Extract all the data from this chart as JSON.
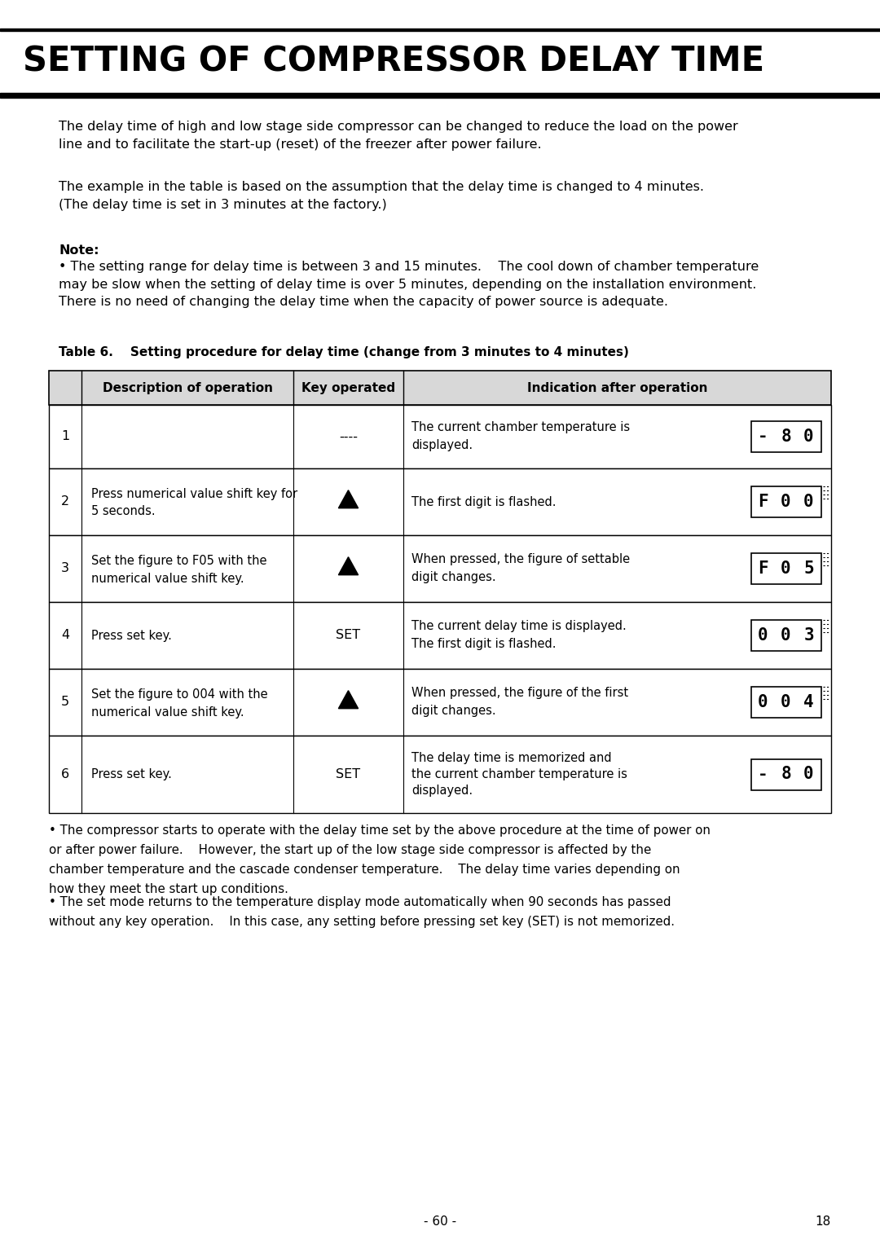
{
  "title": "SETTING OF COMPRESSOR DELAY TIME",
  "para1": "The delay time of high and low stage side compressor can be changed to reduce the load on the power\nline and to facilitate the start-up (reset) of the freezer after power failure.",
  "para2": "The example in the table is based on the assumption that the delay time is changed to 4 minutes.\n(The delay time is set in 3 minutes at the factory.)",
  "note_label": "Note:",
  "note_text": "• The setting range for delay time is between 3 and 15 minutes.    The cool down of chamber temperature\nmay be slow when the setting of delay time is over 5 minutes, depending on the installation environment.\nThere is no need of changing the delay time when the capacity of power source is adequate.",
  "table_title": "Table 6.    Setting procedure for delay time (change from 3 minutes to 4 minutes)",
  "col_headers": [
    "",
    "Description of operation",
    "Key operated",
    "Indication after operation"
  ],
  "rows": [
    {
      "num": "1",
      "desc": "",
      "key": "----",
      "key_is_arrow": false,
      "indication_text": "The current chamber temperature is\ndisplayed.",
      "display_text": "-80",
      "display_dashed": false
    },
    {
      "num": "2",
      "desc": "Press numerical value shift key for\n5 seconds.",
      "key": "arrow",
      "key_is_arrow": true,
      "indication_text": "The first digit is flashed.",
      "display_text": "F00",
      "display_dashed": true
    },
    {
      "num": "3",
      "desc": "Set the figure to F05 with the\nnumerical value shift key.",
      "key": "arrow",
      "key_is_arrow": true,
      "indication_text": "When pressed, the figure of settable\ndigit changes.",
      "display_text": "F05",
      "display_dashed": true
    },
    {
      "num": "4",
      "desc": "Press set key.",
      "key": "SET",
      "key_is_arrow": false,
      "indication_text": "The current delay time is displayed.\nThe first digit is flashed.",
      "display_text": "003",
      "display_dashed": true
    },
    {
      "num": "5",
      "desc": "Set the figure to 004 with the\nnumerical value shift key.",
      "key": "arrow",
      "key_is_arrow": true,
      "indication_text": "When pressed, the figure of the first\ndigit changes.",
      "display_text": "004",
      "display_dashed": true
    },
    {
      "num": "6",
      "desc": "Press set key.",
      "key": "SET",
      "key_is_arrow": false,
      "indication_text": "The delay time is memorized and\nthe current chamber temperature is\ndisplayed.",
      "display_text": "-80",
      "display_dashed": false
    }
  ],
  "footer1": "• The compressor starts to operate with the delay time set by the above procedure at the time of power on\nor after power failure.    However, the start up of the low stage side compressor is affected by the\nchamber temperature and the cascade condenser temperature.    The delay time varies depending on\nhow they meet the start up conditions.",
  "footer2": "• The set mode returns to the temperature display mode automatically when 90 seconds has passed\nwithout any key operation.    In this case, any setting before pressing set key (SET) is not memorized.",
  "page_num": "- 60 -",
  "page_num2": "18",
  "bg_color": "#ffffff"
}
